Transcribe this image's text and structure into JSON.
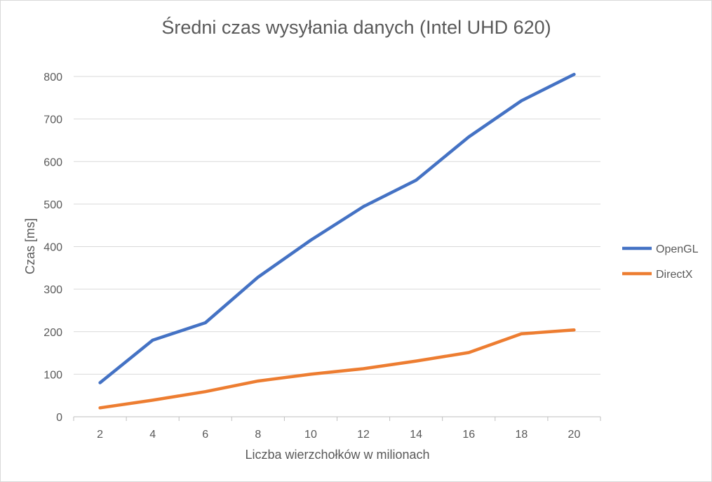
{
  "chart_data": {
    "type": "line",
    "title": "Średni czas wysyłania danych (Intel UHD 620)",
    "xlabel": "Liczba wierzchołków w milionach",
    "ylabel": "Czas  [ms]",
    "categories": [
      "2",
      "4",
      "6",
      "8",
      "10",
      "12",
      "14",
      "16",
      "18",
      "20"
    ],
    "ylim": [
      0,
      800
    ],
    "yticks": [
      0,
      100,
      200,
      300,
      400,
      500,
      600,
      700,
      800
    ],
    "grid": true,
    "legend_position": "right",
    "series": [
      {
        "name": "OpenGL",
        "color": "#4472C4",
        "values": [
          80,
          180,
          221,
          328,
          415,
          494,
          556,
          658,
          743,
          805
        ]
      },
      {
        "name": "DirectX",
        "color": "#ED7D31",
        "values": [
          21,
          39,
          59,
          84,
          100,
          113,
          131,
          151,
          195,
          204
        ]
      }
    ]
  }
}
